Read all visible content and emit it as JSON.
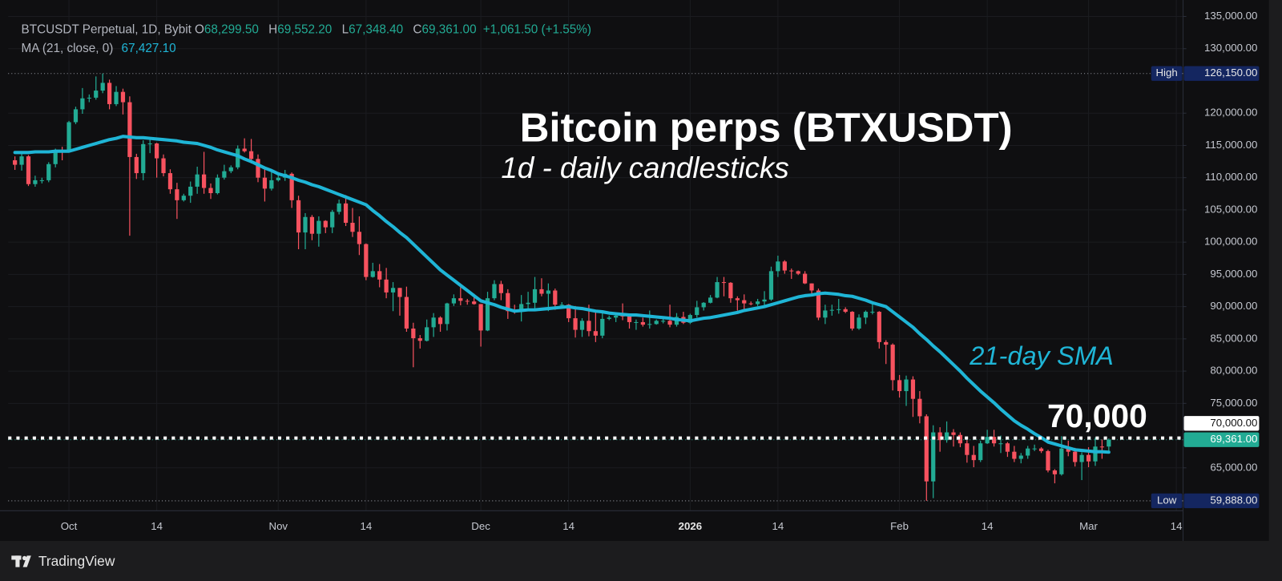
{
  "chart_data": {
    "type": "candlestick",
    "title": "Bitcoin perps (BTXUSDT)",
    "subtitle": "1d - daily candlesticks",
    "header": {
      "symbol": "BTCUSDT Perpetual, 1D, Bybit",
      "ohlc": [
        {
          "key": "O",
          "value": "68,299.50"
        },
        {
          "key": "H",
          "value": "69,552.20"
        },
        {
          "key": "L",
          "value": "67,348.40"
        },
        {
          "key": "C",
          "value": "69,361.00"
        }
      ],
      "change": "+1,061.50 (+1.55%)"
    },
    "up_color": "#22ab94",
    "down_color": "#f7525f",
    "grid": true,
    "x": [
      "2025-09-23",
      "2025-09-24",
      "2025-09-25",
      "2025-09-26",
      "2025-09-27",
      "2025-09-28",
      "2025-09-29",
      "2025-09-30",
      "2025-10-01",
      "2025-10-02",
      "2025-10-03",
      "2025-10-04",
      "2025-10-05",
      "2025-10-06",
      "2025-10-07",
      "2025-10-08",
      "2025-10-09",
      "2025-10-10",
      "2025-10-11",
      "2025-10-12",
      "2025-10-13",
      "2025-10-14",
      "2025-10-15",
      "2025-10-16",
      "2025-10-17",
      "2025-10-18",
      "2025-10-19",
      "2025-10-20",
      "2025-10-21",
      "2025-10-22",
      "2025-10-23",
      "2025-10-24",
      "2025-10-25",
      "2025-10-26",
      "2025-10-27",
      "2025-10-28",
      "2025-10-29",
      "2025-10-30",
      "2025-10-31",
      "2025-11-01",
      "2025-11-02",
      "2025-11-03",
      "2025-11-04",
      "2025-11-05",
      "2025-11-06",
      "2025-11-07",
      "2025-11-08",
      "2025-11-09",
      "2025-11-10",
      "2025-11-11",
      "2025-11-12",
      "2025-11-13",
      "2025-11-14",
      "2025-11-15",
      "2025-11-16",
      "2025-11-17",
      "2025-11-18",
      "2025-11-19",
      "2025-11-20",
      "2025-11-21",
      "2025-11-22",
      "2025-11-23",
      "2025-11-24",
      "2025-11-25",
      "2025-11-26",
      "2025-11-27",
      "2025-11-28",
      "2025-11-29",
      "2025-11-30",
      "2025-12-01",
      "2025-12-02",
      "2025-12-03",
      "2025-12-04",
      "2025-12-05",
      "2025-12-06",
      "2025-12-07",
      "2025-12-08",
      "2025-12-09",
      "2025-12-10",
      "2025-12-11",
      "2025-12-12",
      "2025-12-13",
      "2025-12-14",
      "2025-12-15",
      "2025-12-16",
      "2025-12-17",
      "2025-12-18",
      "2025-12-19",
      "2025-12-20",
      "2025-12-21",
      "2025-12-22",
      "2025-12-23",
      "2025-12-24",
      "2025-12-25",
      "2025-12-26",
      "2025-12-27",
      "2025-12-28",
      "2025-12-29",
      "2025-12-30",
      "2025-12-31",
      "2026-01-01",
      "2026-01-02",
      "2026-01-03",
      "2026-01-04",
      "2026-01-05",
      "2026-01-06",
      "2026-01-07",
      "2026-01-08",
      "2026-01-09",
      "2026-01-10",
      "2026-01-11",
      "2026-01-12",
      "2026-01-13",
      "2026-01-14",
      "2026-01-15",
      "2026-01-16",
      "2026-01-17",
      "2026-01-18",
      "2026-01-19",
      "2026-01-20",
      "2026-01-21",
      "2026-01-22",
      "2026-01-23",
      "2026-01-24",
      "2026-01-25",
      "2026-01-26",
      "2026-01-27",
      "2026-01-28",
      "2026-01-29",
      "2026-01-30",
      "2026-01-31",
      "2026-02-01",
      "2026-02-02",
      "2026-02-03",
      "2026-02-04",
      "2026-02-05",
      "2026-02-06",
      "2026-02-07",
      "2026-02-08",
      "2026-02-09",
      "2026-02-10",
      "2026-02-11",
      "2026-02-12",
      "2026-02-13",
      "2026-02-14",
      "2026-02-15",
      "2026-02-16",
      "2026-02-17",
      "2026-02-18",
      "2026-02-19",
      "2026-02-20",
      "2026-02-21",
      "2026-02-22",
      "2026-02-23",
      "2026-02-24",
      "2026-02-25",
      "2026-02-26",
      "2026-02-27",
      "2026-02-28",
      "2026-03-01",
      "2026-03-02",
      "2026-03-03",
      "2026-03-04"
    ],
    "open": [
      112700,
      112000,
      113300,
      109000,
      109600,
      109600,
      112100,
      114300,
      114100,
      118600,
      120600,
      122300,
      122400,
      123500,
      124700,
      121400,
      123300,
      121700,
      113200,
      110700,
      115200,
      115300,
      113000,
      110700,
      108200,
      106500,
      107200,
      108600,
      110500,
      108400,
      107600,
      110000,
      111000,
      111600,
      114500,
      114100,
      112900,
      110000,
      108300,
      109600,
      110000,
      110600,
      106500,
      101500,
      103900,
      101300,
      103300,
      102300,
      104700,
      106000,
      103000,
      101600,
      99700,
      94600,
      95500,
      94200,
      92200,
      92900,
      91500,
      86600,
      85100,
      84700,
      86800,
      88300,
      87300,
      90500,
      91300,
      90900,
      90800,
      90400,
      86300,
      91300,
      93500,
      92100,
      89300,
      89200,
      90400,
      90600,
      92700,
      92000,
      92500,
      90300,
      90300,
      88200,
      86400,
      87800,
      86200,
      85500,
      88100,
      88300,
      88600,
      88500,
      87600,
      87600,
      87200,
      87300,
      87800,
      87800,
      87200,
      88400,
      87500,
      88700,
      89900,
      90600,
      91400,
      93800,
      93700,
      91300,
      91000,
      90500,
      90400,
      90800,
      91100,
      95500,
      97000,
      95600,
      95500,
      95100,
      93600,
      92500,
      88300,
      89400,
      89500,
      89600,
      89200,
      86600,
      88300,
      89200,
      89200,
      84500,
      84100,
      78600,
      76900,
      78700,
      75700,
      73000,
      62900,
      70500,
      69300,
      70500,
      70100,
      68800,
      67000,
      66200,
      68800,
      69800,
      68800,
      68800,
      67500,
      66400,
      66900,
      68000,
      68000,
      67600,
      64600,
      64000,
      68000,
      67500,
      65900,
      67000,
      66000,
      68300,
      68299.5
    ],
    "high": [
      113300,
      113900,
      113500,
      110300,
      110000,
      112400,
      114500,
      114800,
      118800,
      121000,
      123900,
      122900,
      125700,
      126150,
      125200,
      124200,
      123800,
      122600,
      113700,
      115800,
      116000,
      115400,
      113600,
      111300,
      109200,
      107500,
      109400,
      111700,
      114000,
      109100,
      110500,
      112000,
      111900,
      115000,
      116100,
      116000,
      113600,
      111600,
      111100,
      110600,
      111200,
      110800,
      107200,
      104500,
      104200,
      104000,
      103400,
      105000,
      106600,
      107300,
      105300,
      104000,
      99800,
      96800,
      96600,
      96000,
      93800,
      92900,
      93100,
      87500,
      85600,
      88000,
      89000,
      88500,
      90600,
      91900,
      93000,
      91200,
      92000,
      90400,
      92300,
      94100,
      94000,
      92700,
      90300,
      91800,
      92300,
      94600,
      94400,
      93600,
      92800,
      90700,
      90400,
      90100,
      88200,
      90300,
      89500,
      89400,
      88600,
      89000,
      90500,
      88900,
      88000,
      88300,
      89400,
      88000,
      88100,
      90300,
      89000,
      89200,
      88900,
      90900,
      90700,
      91800,
      94600,
      94600,
      93800,
      91600,
      91900,
      90800,
      91200,
      92400,
      96200,
      97900,
      97200,
      95900,
      95600,
      95500,
      93600,
      92800,
      90300,
      90300,
      91200,
      89900,
      89300,
      88800,
      89400,
      90500,
      89300,
      84800,
      84300,
      79400,
      79300,
      79200,
      76900,
      73300,
      71600,
      71300,
      72200,
      71000,
      70500,
      69300,
      68400,
      69200,
      70900,
      70900,
      70000,
      69000,
      68400,
      67300,
      68400,
      68600,
      68200,
      67800,
      64800,
      69900,
      69200,
      68100,
      67400,
      68200,
      69700,
      69400,
      69552.2
    ],
    "low": [
      111200,
      111100,
      108700,
      108600,
      109100,
      109300,
      111600,
      112700,
      113900,
      118300,
      119900,
      121700,
      122100,
      123100,
      120600,
      121100,
      119800,
      101000,
      109800,
      109600,
      113800,
      110000,
      110200,
      107500,
      103600,
      106300,
      106100,
      107500,
      107500,
      106700,
      107400,
      109700,
      110700,
      111300,
      113900,
      112200,
      109300,
      106300,
      108000,
      109400,
      109500,
      105300,
      98900,
      98900,
      100300,
      99300,
      101400,
      101400,
      104300,
      102500,
      100800,
      98000,
      94100,
      94500,
      93000,
      91300,
      89300,
      88600,
      86100,
      80600,
      83500,
      84600,
      85300,
      86100,
      86300,
      90100,
      90200,
      90300,
      90300,
      83800,
      86200,
      91000,
      91000,
      88100,
      88900,
      87700,
      89600,
      89600,
      91600,
      89300,
      89500,
      89800,
      87600,
      85200,
      85300,
      85400,
      84500,
      85100,
      87900,
      87600,
      87900,
      86600,
      86400,
      86900,
      86600,
      87200,
      87400,
      86800,
      86900,
      87300,
      87300,
      88300,
      89400,
      90500,
      91300,
      91600,
      90600,
      89400,
      89600,
      90200,
      90100,
      90000,
      90900,
      94600,
      95100,
      94300,
      94900,
      93500,
      91900,
      87900,
      87300,
      88600,
      88900,
      89000,
      86300,
      86400,
      87300,
      88800,
      83500,
      81100,
      77000,
      75900,
      74600,
      72900,
      71900,
      59888,
      60300,
      67500,
      68900,
      68300,
      68200,
      65800,
      65100,
      65900,
      68700,
      68300,
      67300,
      66700,
      65900,
      65700,
      66400,
      67600,
      67300,
      64300,
      62600,
      63800,
      66800,
      65200,
      63100,
      65100,
      65300,
      66400,
      67348.4
    ],
    "close": [
      112000,
      113300,
      109000,
      109600,
      109600,
      112100,
      114300,
      114100,
      118600,
      120600,
      122300,
      122400,
      123500,
      124700,
      121400,
      123300,
      121700,
      113200,
      110700,
      115200,
      115300,
      113000,
      110700,
      108200,
      106500,
      107200,
      108600,
      110500,
      108400,
      107600,
      110000,
      111000,
      111600,
      114500,
      114100,
      112900,
      110000,
      108300,
      109600,
      110000,
      110600,
      106500,
      101500,
      103900,
      101300,
      103300,
      102300,
      104700,
      106000,
      103000,
      101600,
      99700,
      94600,
      95500,
      94200,
      92200,
      92900,
      91500,
      86600,
      85100,
      84700,
      86800,
      88300,
      87300,
      90500,
      91300,
      90900,
      90800,
      90400,
      86300,
      91300,
      93500,
      92100,
      89300,
      89200,
      90400,
      90600,
      92700,
      92000,
      92500,
      90300,
      90300,
      88200,
      86400,
      87800,
      86200,
      85500,
      88100,
      88300,
      88600,
      88500,
      87600,
      87600,
      87200,
      87300,
      87800,
      87800,
      87200,
      88400,
      87500,
      88700,
      89900,
      90600,
      91400,
      93800,
      93700,
      91300,
      91000,
      90500,
      90400,
      90800,
      91100,
      95500,
      97000,
      95600,
      95500,
      95100,
      93600,
      92500,
      88300,
      89400,
      89500,
      89600,
      89200,
      86600,
      88300,
      89200,
      89200,
      84500,
      84100,
      78600,
      76900,
      78700,
      75700,
      73000,
      62900,
      70500,
      69300,
      70500,
      70100,
      68800,
      67000,
      66200,
      68800,
      69800,
      68800,
      68800,
      67500,
      66400,
      66900,
      68000,
      68000,
      67600,
      64600,
      64000,
      68000,
      67500,
      65900,
      67000,
      66000,
      68300,
      68299.5,
      69361
    ],
    "ma": {
      "name": "MA (21, close, 0)",
      "last_label": "67,427.10",
      "annotation": "21-day SMA",
      "color": "#1fb5d6",
      "values": [
        113900,
        113900,
        113900,
        114000,
        114000,
        114000,
        114100,
        114100,
        114100,
        114400,
        114700,
        115000,
        115300,
        115600,
        115900,
        116100,
        116400,
        116300,
        116200,
        116200,
        116100,
        116000,
        115900,
        115800,
        115700,
        115500,
        115400,
        115300,
        115000,
        114700,
        114300,
        114000,
        113700,
        113400,
        112900,
        112500,
        112000,
        111500,
        111100,
        110600,
        110300,
        110000,
        109600,
        109300,
        108900,
        108600,
        108200,
        107800,
        107400,
        107000,
        106600,
        106200,
        105800,
        104900,
        104100,
        103200,
        102400,
        101500,
        100700,
        99700,
        98700,
        97700,
        96700,
        95700,
        94900,
        94100,
        93300,
        92500,
        91700,
        90900,
        90600,
        90300,
        89900,
        89600,
        89300,
        89400,
        89500,
        89500,
        89600,
        89700,
        89800,
        89900,
        90000,
        89800,
        89700,
        89500,
        89300,
        89200,
        89000,
        88900,
        88800,
        88700,
        88700,
        88600,
        88500,
        88400,
        88300,
        88200,
        88000,
        87900,
        87800,
        88000,
        88200,
        88300,
        88500,
        88700,
        88900,
        89100,
        89400,
        89600,
        89800,
        90000,
        90300,
        90600,
        90900,
        91200,
        91500,
        91700,
        91800,
        92000,
        92100,
        92000,
        91900,
        91700,
        91600,
        91300,
        91000,
        90600,
        90300,
        90000,
        89200,
        88400,
        87600,
        86800,
        85800,
        84900,
        83900,
        83000,
        82000,
        81000,
        80000,
        78900,
        77900,
        76900,
        76000,
        75100,
        74100,
        73200,
        72300,
        71600,
        71000,
        70300,
        69700,
        69000,
        68700,
        68400,
        68100,
        67800,
        67700,
        67600,
        67500,
        67500,
        67427.1
      ]
    },
    "xlim": [
      "2025-09-22",
      "2026-03-15"
    ],
    "xticks": [
      {
        "value": "2025-10-01",
        "label": "Oct"
      },
      {
        "value": "2025-10-14",
        "label": "14"
      },
      {
        "value": "2025-11-01",
        "label": "Nov"
      },
      {
        "value": "2025-11-14",
        "label": "14"
      },
      {
        "value": "2025-12-01",
        "label": "Dec"
      },
      {
        "value": "2025-12-14",
        "label": "14"
      },
      {
        "value": "2026-01-01",
        "label": "2026"
      },
      {
        "value": "2026-01-14",
        "label": "14"
      },
      {
        "value": "2026-02-01",
        "label": "Feb"
      },
      {
        "value": "2026-02-14",
        "label": "14"
      },
      {
        "value": "2026-03-01",
        "label": "Mar"
      },
      {
        "value": "2026-03-14",
        "label": "14"
      }
    ],
    "ylim": [
      58350,
      137550
    ],
    "yticks": [
      {
        "value": 135000,
        "label": "135,000.00"
      },
      {
        "value": 130000,
        "label": "130,000.00"
      },
      {
        "value": 120000,
        "label": "120,000.00"
      },
      {
        "value": 115000,
        "label": "115,000.00"
      },
      {
        "value": 110000,
        "label": "110,000.00"
      },
      {
        "value": 105000,
        "label": "105,000.00"
      },
      {
        "value": 100000,
        "label": "100,000.00"
      },
      {
        "value": 95000,
        "label": "95,000.00"
      },
      {
        "value": 90000,
        "label": "90,000.00"
      },
      {
        "value": 85000,
        "label": "85,000.00"
      },
      {
        "value": 80000,
        "label": "80,000.00"
      },
      {
        "value": 75000,
        "label": "75,000.00"
      },
      {
        "value": 65000,
        "label": "65,000.00"
      }
    ],
    "high_marker": {
      "label": "High",
      "value": 126150,
      "value_label": "126,150.00"
    },
    "low_marker": {
      "label": "Low",
      "value": 59888,
      "value_label": "59,888.00"
    },
    "hline": {
      "value": 70000,
      "value_label": "70,000.00",
      "annotation": "70,000"
    },
    "last_price": {
      "value": 69361,
      "label": "69,361.00"
    },
    "brand": "TradingView"
  }
}
